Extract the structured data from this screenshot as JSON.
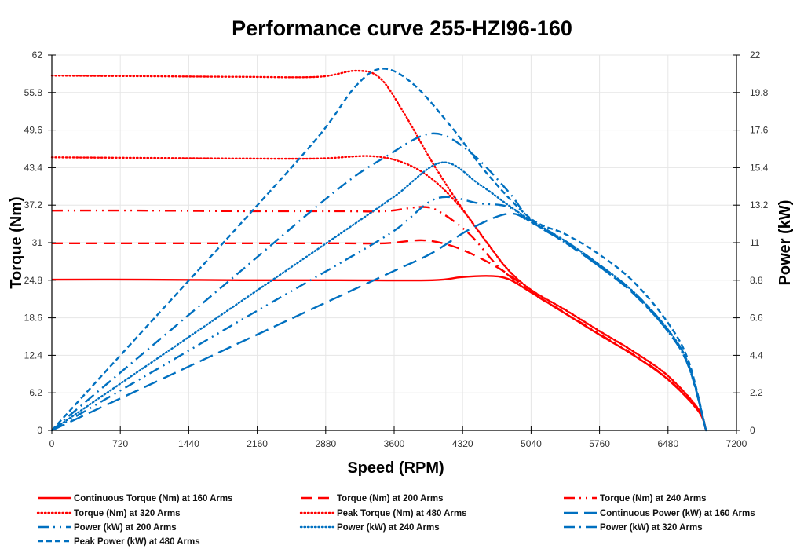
{
  "chart_data": {
    "type": "line",
    "title": "Performance curve 255-HZI96-160",
    "xlabel": "Speed (RPM)",
    "ylabel": "Torque (Nm)",
    "y2label": "Power (kW)",
    "xlim": [
      0,
      7200
    ],
    "ylim": [
      0,
      62
    ],
    "y2lim": [
      0,
      22
    ],
    "xticks": [
      "0",
      "720",
      "1440",
      "2160",
      "2880",
      "3600",
      "4320",
      "5040",
      "5760",
      "6480",
      "7200"
    ],
    "yticks": [
      "0",
      "6.2",
      "12.4",
      "18.6",
      "24.8",
      "31",
      "37.2",
      "43.4",
      "49.6",
      "55.8",
      "62"
    ],
    "y2ticks": [
      "0",
      "2.2",
      "4.4",
      "6.6",
      "8.8",
      "11",
      "13.2",
      "15.4",
      "17.6",
      "19.8",
      "22"
    ],
    "grid": true,
    "legend_position": "bottom",
    "colors": {
      "torque": "#ff0000",
      "power": "#0070c0"
    },
    "series": [
      {
        "name": "Continuous Torque (Nm) at 160 Arms",
        "axis": "left",
        "color": "#ff0000",
        "style": "solid",
        "x": [
          0,
          1000,
          2000,
          3000,
          4000,
          4300,
          4600,
          4800,
          5040,
          5400,
          5760,
          6120,
          6480,
          6800,
          6880
        ],
        "y": [
          24.9,
          24.9,
          24.8,
          24.8,
          24.8,
          25.3,
          25.5,
          25.0,
          22.8,
          19.3,
          15.8,
          12.4,
          8.4,
          3.2,
          0
        ]
      },
      {
        "name": "Torque (Nm) at 200 Arms",
        "axis": "left",
        "color": "#ff0000",
        "style": "dash",
        "x": [
          0,
          1000,
          2000,
          3000,
          3500,
          3900,
          4200,
          4500,
          4800,
          5040,
          5400,
          5760,
          6120,
          6480,
          6800,
          6880
        ],
        "y": [
          30.9,
          30.9,
          30.9,
          30.9,
          30.9,
          31.4,
          30.5,
          28.5,
          25.8,
          22.8,
          19.3,
          15.8,
          12.4,
          8.4,
          3.2,
          0
        ]
      },
      {
        "name": "Torque (Nm) at 240 Arms",
        "axis": "left",
        "color": "#ff0000",
        "style": "dash-dot-dot",
        "x": [
          0,
          1000,
          2000,
          3000,
          3500,
          3900,
          4100,
          4400,
          4700,
          5040,
          5400,
          5760,
          6120,
          6480,
          6800,
          6880
        ],
        "y": [
          36.3,
          36.3,
          36.2,
          36.2,
          36.2,
          36.9,
          35.9,
          32.3,
          27.0,
          22.9,
          19.4,
          15.9,
          12.5,
          8.5,
          3.2,
          0
        ]
      },
      {
        "name": "Torque (Nm) at 320 Arms",
        "axis": "left",
        "color": "#ff0000",
        "style": "dot",
        "x": [
          0,
          1000,
          2000,
          2800,
          3350,
          3700,
          4000,
          4300,
          4600,
          4800,
          5040,
          5400,
          5760,
          6120,
          6480,
          6800,
          6880
        ],
        "y": [
          45.1,
          45.0,
          44.9,
          44.9,
          45.3,
          44.2,
          41.5,
          36.8,
          30.5,
          26.5,
          23.2,
          19.9,
          16.4,
          13.0,
          9.0,
          3.5,
          0
        ]
      },
      {
        "name": "Peak Torque (Nm) at 480 Arms",
        "axis": "left",
        "color": "#ff0000",
        "style": "dot",
        "x": [
          0,
          1000,
          2000,
          2800,
          3200,
          3450,
          3700,
          4000,
          4300,
          4600,
          4800,
          5040,
          5400,
          5760,
          6120,
          6480,
          6800,
          6880
        ],
        "y": [
          58.6,
          58.5,
          58.4,
          58.4,
          59.4,
          58.2,
          52.5,
          44.3,
          37.0,
          30.5,
          26.5,
          23.2,
          19.9,
          16.4,
          13.0,
          9.0,
          3.5,
          0
        ]
      },
      {
        "name": "Continuous Power (kW) at 160 Arms",
        "axis": "right",
        "color": "#0070c0",
        "style": "long-dash",
        "x": [
          0,
          1000,
          2000,
          3000,
          3600,
          4000,
          4400,
          4800,
          5040,
          5400,
          5760,
          6120,
          6480,
          6700,
          6880
        ],
        "y": [
          0,
          2.6,
          5.2,
          7.8,
          9.35,
          10.4,
          11.8,
          12.7,
          12.2,
          11.0,
          9.6,
          8.0,
          5.8,
          3.7,
          0
        ]
      },
      {
        "name": "Power (kW) at 200 Arms",
        "axis": "right",
        "color": "#0070c0",
        "style": "dash-dot-dot",
        "x": [
          0,
          1000,
          2000,
          3000,
          3600,
          4050,
          4500,
          4800,
          5040,
          5400,
          5760,
          6120,
          6480,
          6700,
          6880
        ],
        "y": [
          0,
          3.24,
          6.5,
          9.7,
          11.7,
          13.6,
          13.3,
          13.1,
          12.2,
          11.0,
          9.6,
          8.0,
          5.8,
          3.7,
          0
        ]
      },
      {
        "name": "Power (kW) at 240 Arms",
        "axis": "right",
        "color": "#0070c0",
        "style": "dot",
        "x": [
          0,
          1000,
          2000,
          3000,
          3600,
          4100,
          4500,
          4800,
          5040,
          5400,
          5760,
          6120,
          6480,
          6700,
          6880
        ],
        "y": [
          0,
          3.8,
          7.6,
          11.4,
          13.7,
          15.7,
          14.4,
          13.2,
          12.3,
          11.1,
          9.7,
          8.1,
          5.9,
          3.8,
          0
        ]
      },
      {
        "name": "Power (kW) at 320 Arms",
        "axis": "right",
        "color": "#0070c0",
        "style": "dash-dot",
        "x": [
          0,
          1000,
          2000,
          3000,
          3500,
          4000,
          4400,
          4800,
          5040,
          5400,
          5760,
          6120,
          6480,
          6700,
          6880
        ],
        "y": [
          0,
          4.7,
          9.4,
          14.1,
          16.0,
          17.4,
          16.3,
          14.0,
          12.3,
          11.1,
          9.7,
          8.1,
          5.9,
          3.8,
          0
        ]
      },
      {
        "name": "Peak Power (kW) at 480 Arms",
        "axis": "right",
        "color": "#0070c0",
        "style": "short-dash",
        "x": [
          0,
          1000,
          2000,
          2800,
          3200,
          3480,
          3800,
          4200,
          4600,
          5040,
          5400,
          5760,
          6120,
          6480,
          6700,
          6880
        ],
        "y": [
          0,
          6.1,
          12.2,
          17.2,
          20.2,
          21.2,
          20.3,
          17.8,
          14.9,
          12.4,
          11.5,
          10.3,
          8.7,
          6.3,
          4.0,
          0
        ]
      }
    ]
  }
}
